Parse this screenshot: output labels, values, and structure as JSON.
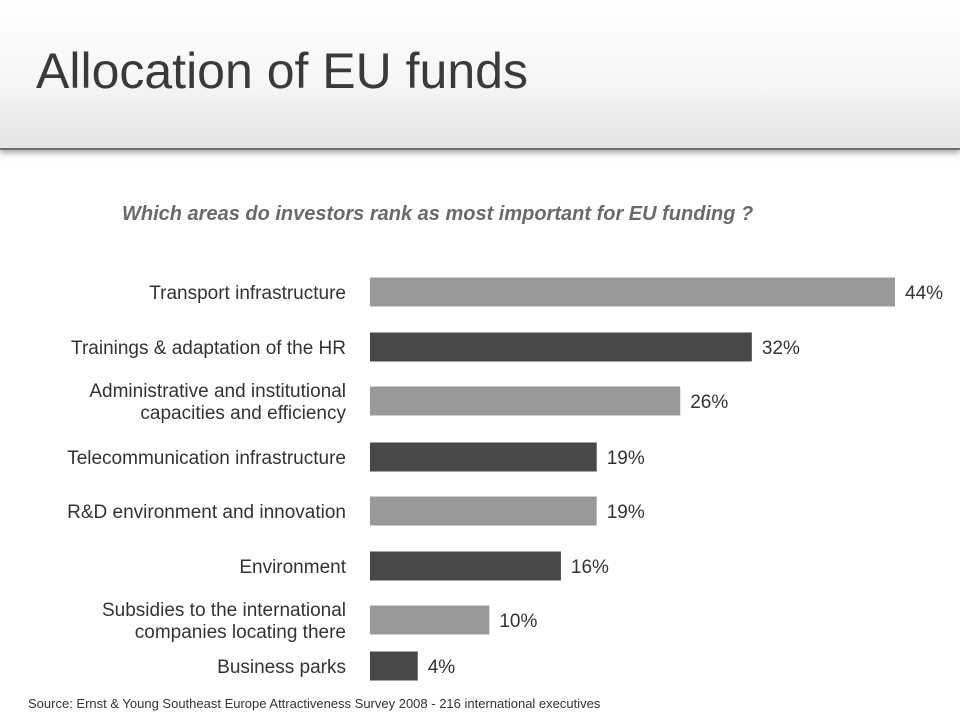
{
  "page": {
    "title": "Allocation of EU funds"
  },
  "colors": {
    "light_bar": "#999999",
    "dark_bar": "#484848"
  },
  "chart_data": {
    "type": "bar",
    "orientation": "horizontal",
    "title": "Which areas do investors rank as most important for EU funding ?",
    "categories": [
      [
        "Transport infrastructure"
      ],
      [
        "Trainings & adaptation of the HR"
      ],
      [
        "Administrative and institutional",
        "capacities and efficiency"
      ],
      [
        "Telecommunication infrastructure"
      ],
      [
        "R&D environment and innovation"
      ],
      [
        "Environment"
      ],
      [
        "Subsidies to the international",
        "companies locating there"
      ],
      [
        "Business parks"
      ]
    ],
    "values": [
      44,
      32,
      26,
      19,
      19,
      16,
      10,
      4
    ],
    "value_labels": [
      "44%",
      "32%",
      "26%",
      "19%",
      "19%",
      "16%",
      "10%",
      "4%"
    ],
    "unit": "%",
    "grid": false,
    "legend": "none",
    "source": "Source: Ernst & Young Southeast Europe Attractiveness Survey 2008 - 216 international executives"
  }
}
